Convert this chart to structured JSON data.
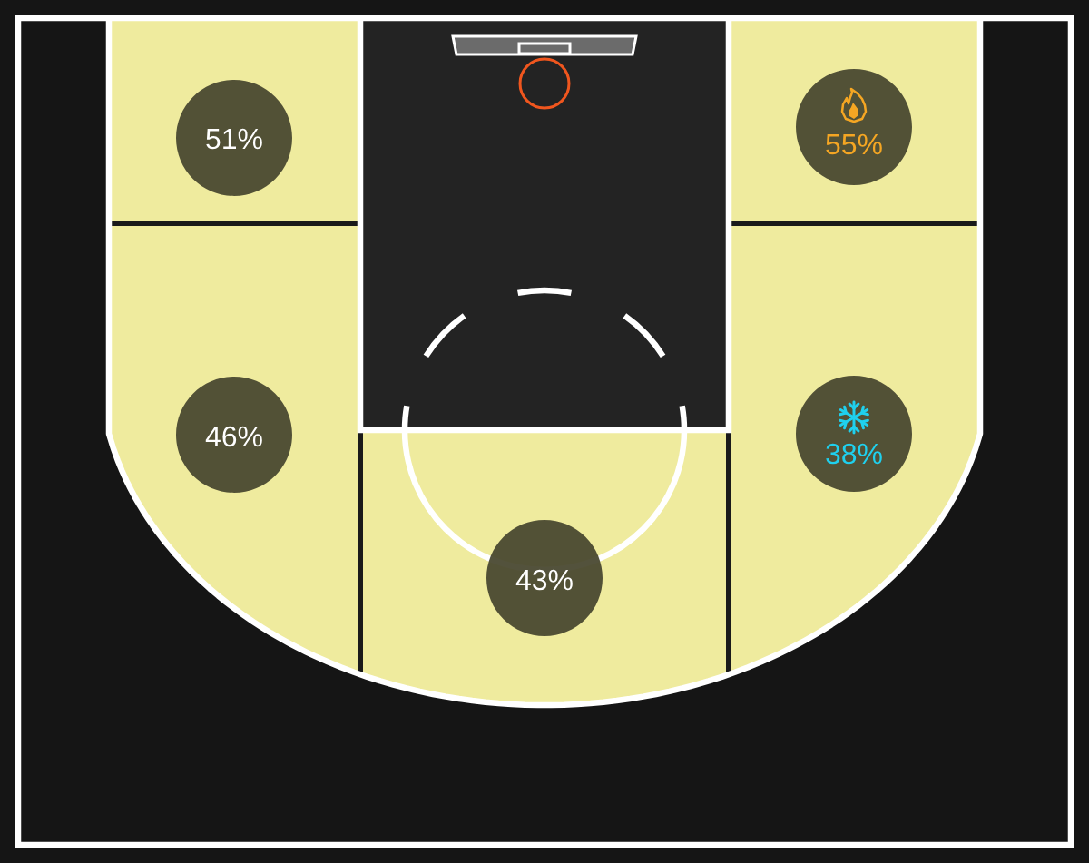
{
  "chart_data": {
    "type": "other",
    "categories": [
      null,
      null,
      null,
      null,
      null
    ],
    "values": [
      51,
      55,
      46,
      38,
      43
    ],
    "value_labels": [
      "51%",
      "55%",
      "46%",
      "38%",
      "43%"
    ],
    "colors": [
      "#ffffff",
      "#f5a623",
      "#ffffff",
      "#1fd0ee",
      "#ffffff"
    ]
  }
}
